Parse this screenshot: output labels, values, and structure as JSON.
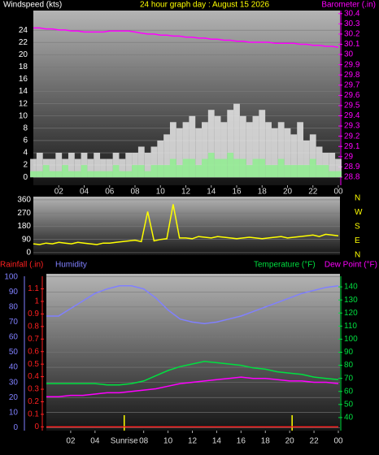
{
  "chart_data": [
    {
      "type": "bar",
      "title": "24 hour graph day : August 15 2026",
      "ylabel": "Windspeed (kts)",
      "grid": true,
      "x": [
        0,
        0.5,
        1,
        1.5,
        2,
        2.5,
        3,
        3.5,
        4,
        4.5,
        5,
        5.5,
        6,
        6.5,
        7,
        7.5,
        8,
        8.5,
        9,
        9.5,
        10,
        10.5,
        11,
        11.5,
        12,
        12.5,
        13,
        13.5,
        14,
        14.5,
        15,
        15.5,
        16,
        16.5,
        17,
        17.5,
        18,
        18.5,
        19,
        19.5,
        20,
        20.5,
        21,
        21.5,
        22,
        22.5,
        23,
        23.5,
        24
      ],
      "xlim": [
        0,
        24
      ],
      "xticks": [
        {
          "value": 2,
          "label": "02"
        },
        {
          "value": 4,
          "label": "04"
        },
        {
          "value": 6,
          "label": "06"
        },
        {
          "value": 8,
          "label": "08"
        },
        {
          "value": 10,
          "label": "10"
        },
        12,
        14,
        16,
        18,
        20,
        22,
        {
          "value": 24,
          "label": "00"
        }
      ],
      "ylim": [
        -1.3,
        27.2
      ],
      "yticks": [
        0,
        2,
        4,
        6,
        8,
        10,
        12,
        14,
        16,
        18,
        20,
        22,
        24
      ],
      "y2lim": [
        28.72,
        30.43
      ],
      "y2ticks": [
        28.8,
        28.9,
        29,
        29.1,
        29.2,
        29.3,
        29.4,
        29.5,
        29.6,
        29.7,
        29.8,
        29.9,
        30,
        30.1,
        30.2,
        30.3,
        30.4
      ],
      "series": [
        {
          "color": "#e8e8e8",
          "values": [
            3,
            4,
            3,
            3,
            4,
            3,
            4,
            3,
            4,
            3,
            4,
            3,
            3,
            4,
            3,
            4,
            4,
            5,
            4,
            5,
            6,
            7,
            9,
            8,
            9,
            10,
            8,
            9,
            11,
            10,
            9,
            11,
            12,
            10,
            9,
            10,
            11,
            9,
            8,
            9,
            8,
            7,
            9,
            6,
            7,
            5,
            4,
            4,
            3
          ]
        },
        {
          "color": "#90ee90",
          "values": [
            1,
            1,
            2,
            1,
            1,
            2,
            1,
            1,
            2,
            1,
            1,
            1,
            1,
            2,
            1,
            1,
            2,
            2,
            1,
            2,
            2,
            2,
            3,
            2,
            3,
            3,
            2,
            3,
            4,
            3,
            3,
            4,
            3,
            3,
            2,
            3,
            3,
            2,
            2,
            3,
            2,
            2,
            2,
            2,
            3,
            2,
            2,
            1,
            1
          ]
        },
        {
          "name": "Barometer (.in)",
          "color": "#ff00ff",
          "axis": "y2",
          "values": [
            30.26,
            30.26,
            30.25,
            30.25,
            30.24,
            30.24,
            30.23,
            30.23,
            30.22,
            30.22,
            30.22,
            30.22,
            30.23,
            30.23,
            30.23,
            30.23,
            30.22,
            30.21,
            30.2,
            30.2,
            30.19,
            30.19,
            30.18,
            30.18,
            30.17,
            30.17,
            30.16,
            30.16,
            30.15,
            30.15,
            30.14,
            30.14,
            30.13,
            30.13,
            30.12,
            30.12,
            30.12,
            30.12,
            30.11,
            30.11,
            30.11,
            30.11,
            30.1,
            30.1,
            30.09,
            30.09,
            30.08,
            30.08,
            30.07
          ]
        }
      ]
    },
    {
      "type": "line",
      "grid": true,
      "x": [
        0,
        0.5,
        1,
        1.5,
        2,
        2.5,
        3,
        3.5,
        4,
        4.5,
        5,
        5.5,
        6,
        6.5,
        7,
        7.5,
        8,
        8.5,
        9,
        9.5,
        10,
        10.5,
        11,
        11.5,
        12,
        12.5,
        13,
        13.5,
        14,
        14.5,
        15,
        15.5,
        16,
        16.5,
        17,
        17.5,
        18,
        18.5,
        19,
        19.5,
        20,
        20.5,
        21,
        21.5,
        22,
        22.5,
        23,
        23.5,
        24
      ],
      "xlim": [
        0,
        24
      ],
      "ylim": [
        -17,
        382
      ],
      "yticks": [
        0,
        90,
        180,
        270,
        360
      ],
      "compass": [
        "N",
        "W",
        "S",
        "E",
        "N"
      ],
      "series": [
        {
          "color": "#ffff00",
          "values": [
            60,
            55,
            65,
            60,
            70,
            65,
            60,
            70,
            65,
            60,
            55,
            65,
            65,
            70,
            75,
            80,
            85,
            75,
            280,
            80,
            90,
            95,
            330,
            100,
            100,
            95,
            110,
            105,
            100,
            110,
            105,
            100,
            95,
            100,
            105,
            100,
            95,
            100,
            105,
            110,
            100,
            105,
            110,
            115,
            120,
            110,
            125,
            120,
            115
          ]
        }
      ]
    },
    {
      "type": "line",
      "grid": true,
      "x": [
        0,
        1,
        2,
        3,
        4,
        5,
        6,
        7,
        8,
        9,
        10,
        11,
        12,
        13,
        14,
        15,
        16,
        17,
        18,
        19,
        20,
        21,
        22,
        23,
        24
      ],
      "xlim": [
        0,
        24
      ],
      "xticks": [
        {
          "value": 2,
          "label": "02"
        },
        {
          "value": 4,
          "label": "04"
        },
        {
          "value": 8,
          "label": "08"
        },
        {
          "value": 10,
          "label": "10"
        },
        12,
        14,
        16,
        18,
        20,
        22,
        {
          "value": 24,
          "label": "00"
        }
      ],
      "markers": [
        {
          "value": 6.4,
          "label": "Sunrise"
        },
        {
          "value": 20.2
        }
      ],
      "ylim": [
        -2,
        102
      ],
      "yticks": [
        0,
        10,
        20,
        30,
        40,
        50,
        60,
        70,
        80,
        90,
        100
      ],
      "y2lim": [
        30,
        150
      ],
      "y2ticks": [
        40,
        50,
        60,
        70,
        80,
        90,
        100,
        110,
        120,
        130,
        140
      ],
      "y3lim": [
        -0.03,
        1.22
      ],
      "y3ticks": [
        0,
        0.1,
        0.2,
        0.3,
        0.4,
        0.5,
        0.6,
        0.7,
        0.8,
        0.9,
        1,
        1.1
      ],
      "series": [
        {
          "name": "Rainfall (.in)",
          "color": "#ff2020",
          "axis": "y3",
          "values": [
            0,
            0,
            0,
            0,
            0,
            0,
            0,
            0,
            0,
            0,
            0,
            0,
            0,
            0,
            0,
            0,
            0,
            0,
            0,
            0,
            0,
            0,
            0,
            0,
            0
          ]
        },
        {
          "name": "Humidity",
          "color": "#8080ff",
          "values": [
            74,
            74,
            79,
            84,
            89,
            92,
            94,
            94,
            92,
            86,
            78,
            72,
            70,
            69,
            70,
            72,
            74,
            77,
            80,
            83,
            86,
            89,
            91,
            93,
            94
          ]
        },
        {
          "name": "Temperature (°F)",
          "color": "#00e040",
          "axis": "y2",
          "values": [
            66,
            66,
            66,
            66,
            66,
            65,
            65,
            66,
            68,
            72,
            76,
            79,
            81,
            83,
            82,
            81,
            80,
            78,
            77,
            75,
            74,
            73,
            71,
            70,
            69
          ]
        },
        {
          "name": "Dew Point (°F)",
          "color": "#ff00ff",
          "axis": "y2",
          "values": [
            56,
            56,
            57,
            57,
            58,
            59,
            59,
            60,
            61,
            62,
            64,
            66,
            67,
            68,
            69,
            70,
            71,
            70,
            70,
            69,
            68,
            68,
            67,
            67,
            66
          ]
        }
      ]
    }
  ]
}
